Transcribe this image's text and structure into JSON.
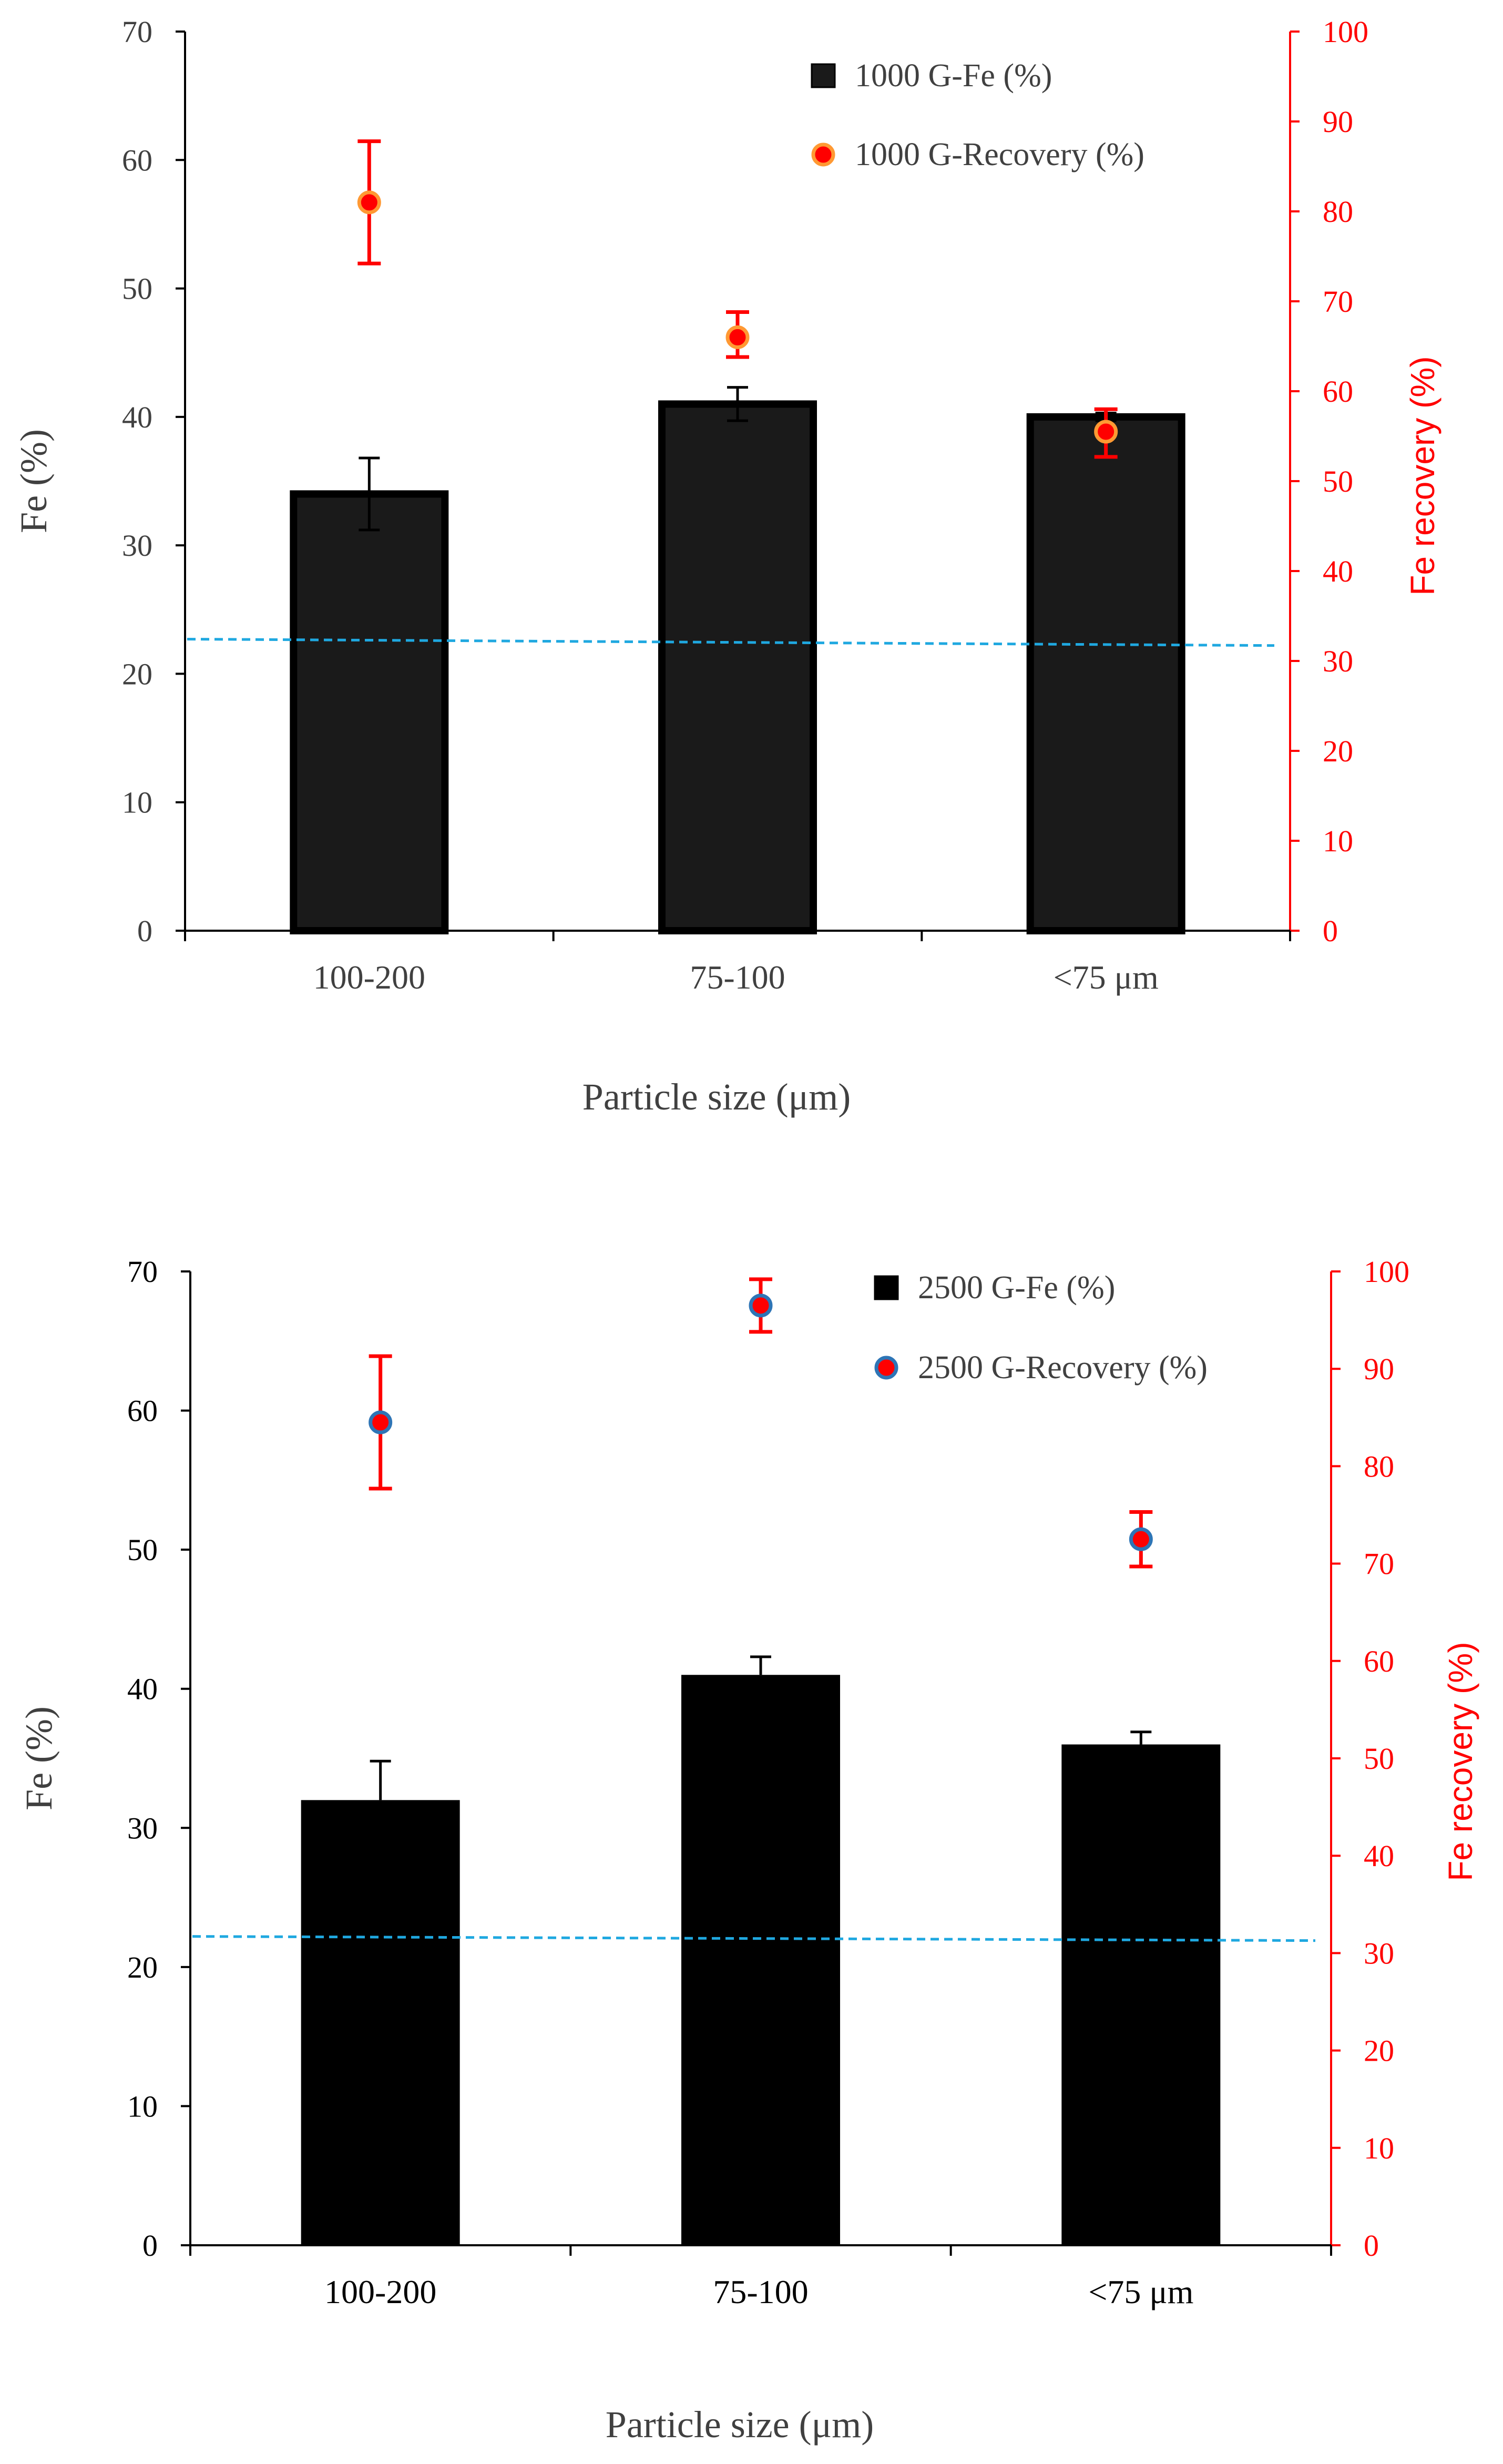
{
  "chart_data": [
    {
      "type": "bar",
      "categories": [
        "100-200",
        "75-100",
        "<75 μm"
      ],
      "xlabel": "Particle size (μm)",
      "ylabel": "Fe  (%)",
      "y2label": "Fe recovery (%)",
      "ylim": [
        0,
        70
      ],
      "y2lim": [
        0,
        100
      ],
      "y_ticks": [
        "0",
        "10",
        "20",
        "30",
        "40",
        "50",
        "60",
        "70"
      ],
      "y2_ticks": [
        "0",
        "10",
        "20",
        "30",
        "40",
        "50",
        "60",
        "70",
        "80",
        "90",
        "100"
      ],
      "series": [
        {
          "name": "1000 G-Fe (%)",
          "kind": "bar",
          "axis": "left",
          "values": [
            34,
            41,
            40
          ],
          "err_low": [
            2.8,
            1.3,
            0.3
          ],
          "err_high": [
            2.8,
            1.3,
            0.3
          ],
          "color": "#1a1a1a"
        },
        {
          "name": "1000 G-Recovery (%)",
          "kind": "point",
          "axis": "right",
          "values": [
            81,
            66,
            55.5
          ],
          "err_low": [
            6.8,
            2.2,
            2.8
          ],
          "err_high": [
            6.8,
            2.8,
            2.5
          ],
          "color": "#ff0000",
          "edge_color": "#ff9933"
        }
      ],
      "reference_line": {
        "axis": "left",
        "start": 22.7,
        "end": 22.2,
        "color": "#1fa8e0",
        "style": "dashed"
      },
      "legend_position": "top-right",
      "grid": false
    },
    {
      "type": "bar",
      "categories": [
        "100-200",
        "75-100",
        "<75 μm"
      ],
      "xlabel": "Particle size (μm)",
      "ylabel": "Fe  (%)",
      "y2label": "Fe recovery (%)",
      "ylim": [
        0,
        70
      ],
      "y2lim": [
        0,
        100
      ],
      "y_ticks": [
        "0",
        "10",
        "20",
        "30",
        "40",
        "50",
        "60",
        "70"
      ],
      "y2_ticks": [
        "0",
        "10",
        "20",
        "30",
        "40",
        "50",
        "60",
        "70",
        "80",
        "90",
        "100"
      ],
      "series": [
        {
          "name": "2500 G-Fe (%)",
          "kind": "bar",
          "axis": "left",
          "values": [
            32,
            41,
            36
          ],
          "err_low": [
            0,
            0,
            0
          ],
          "err_high": [
            2.8,
            1.3,
            0.9
          ],
          "color": "#000000"
        },
        {
          "name": "2500 G-Recovery (%)",
          "kind": "point",
          "axis": "right",
          "values": [
            84.5,
            96.5,
            72.5
          ],
          "err_low": [
            6.8,
            2.7,
            2.8
          ],
          "err_high": [
            6.8,
            2.7,
            2.8
          ],
          "color": "#ff0000",
          "edge_color": "#2e75b6"
        }
      ],
      "reference_line": {
        "axis": "left",
        "start": 22.2,
        "end": 21.9,
        "color": "#1fa8e0",
        "style": "dashed"
      },
      "legend_position": "top-right",
      "grid": false
    }
  ]
}
